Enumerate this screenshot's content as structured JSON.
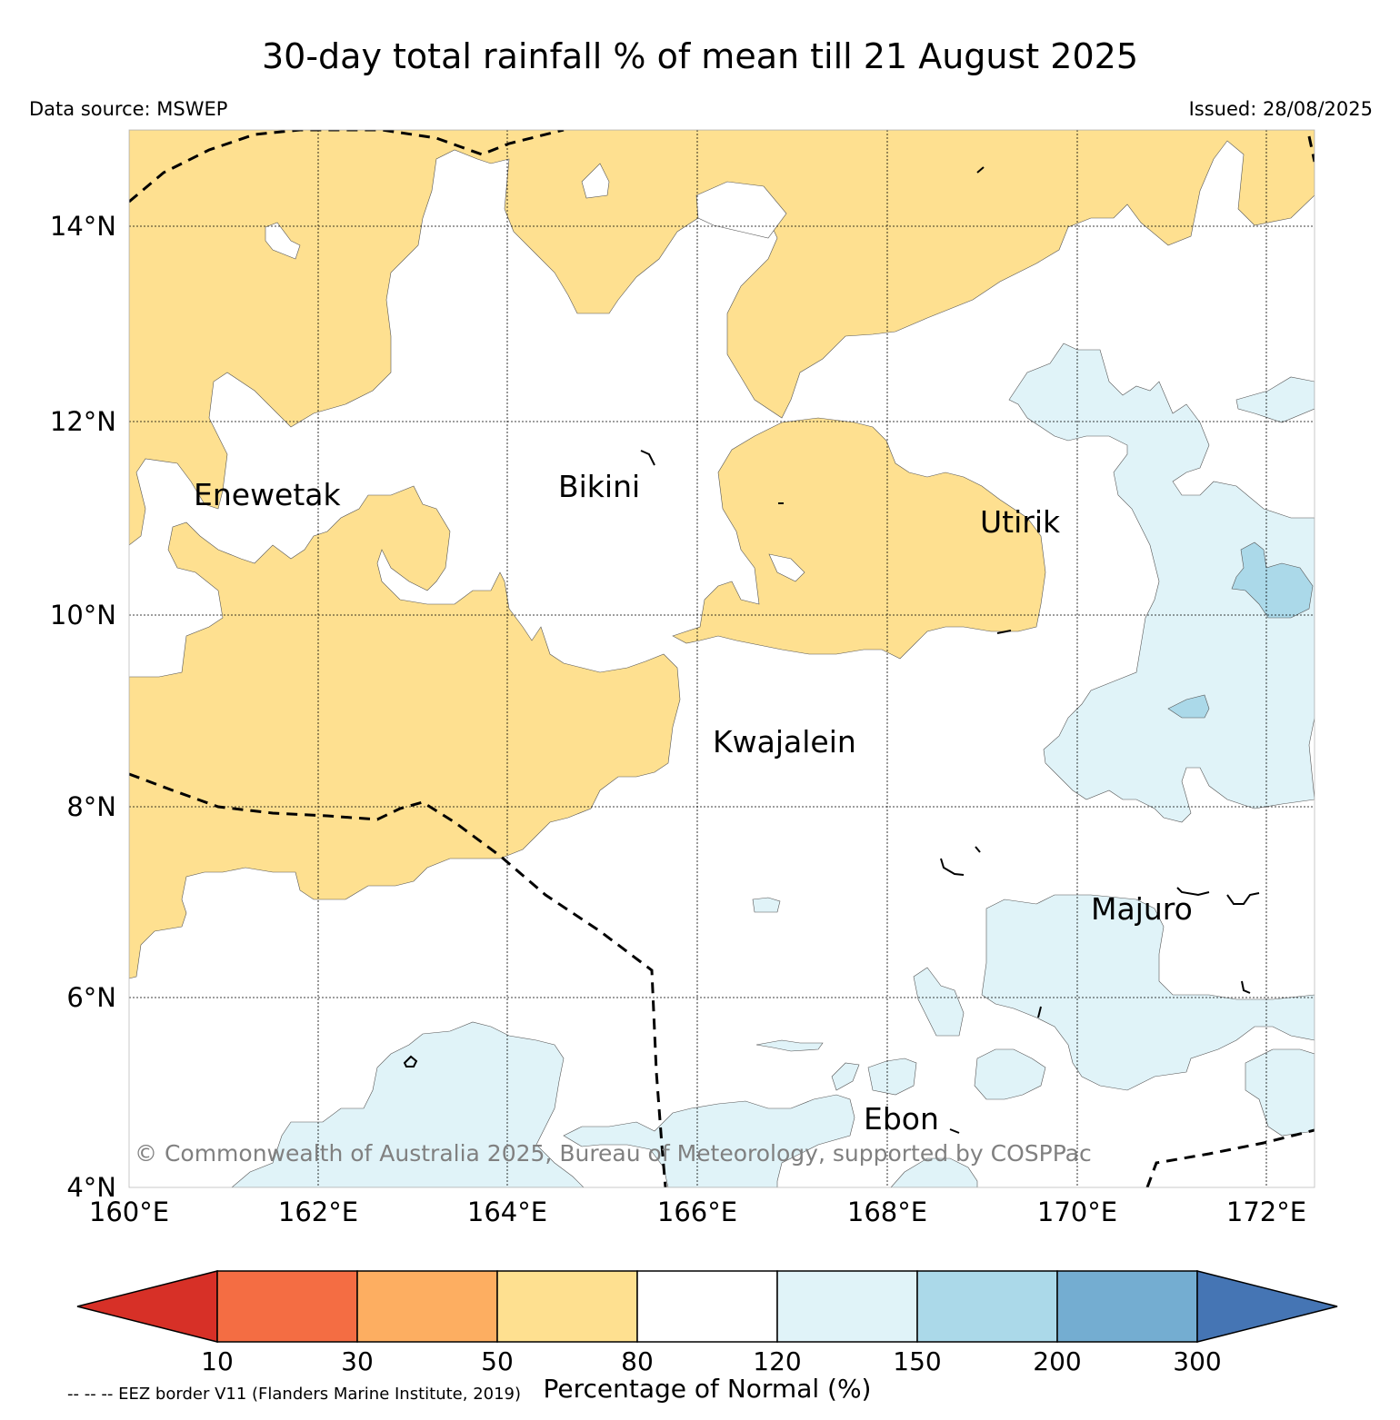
{
  "title": "30-day total rainfall % of mean till 21 August 2025",
  "data_source": "Data source: MSWEP",
  "issued": "Issued: 28/08/2025",
  "map": {
    "lon_range": [
      160,
      172.5
    ],
    "lat_range": [
      4,
      15
    ],
    "lat_ticks": [
      "14°N",
      "12°N",
      "10°N",
      "8°N",
      "6°N",
      "4°N"
    ],
    "lon_ticks": [
      "160°E",
      "162°E",
      "164°E",
      "166°E",
      "168°E",
      "170°E",
      "172°E"
    ],
    "places": [
      {
        "name": "Enewetak",
        "lon": 162.2,
        "lat": 11.5
      },
      {
        "name": "Bikini",
        "lon": 165.6,
        "lat": 11.5
      },
      {
        "name": "Utirik",
        "lon": 169.6,
        "lat": 11.0
      },
      {
        "name": "Kwajalein",
        "lon": 167.4,
        "lat": 8.7
      },
      {
        "name": "Majuro",
        "lon": 171.2,
        "lat": 7.1
      },
      {
        "name": "Ebon",
        "lon": 168.6,
        "lat": 4.6
      }
    ],
    "copyright": "© Commonwealth of Australia 2025, Bureau of Meteorology, supported by COSPPac"
  },
  "colorbar": {
    "title": "Percentage of Normal (%)",
    "ticks": [
      "10",
      "30",
      "50",
      "80",
      "120",
      "150",
      "200",
      "300"
    ],
    "colors": {
      "below_10": "#d73027",
      "10_30": "#f46d43",
      "30_50": "#fdae61",
      "50_80": "#fee090",
      "80_120": "#ffffff",
      "120_150": "#e0f3f8",
      "150_200": "#abd9e9",
      "200_300": "#74add1",
      "above_300": "#4575b4"
    }
  },
  "eez_note": "-- -- -- EEZ border V11 (Flanders Marine Institute, 2019)"
}
